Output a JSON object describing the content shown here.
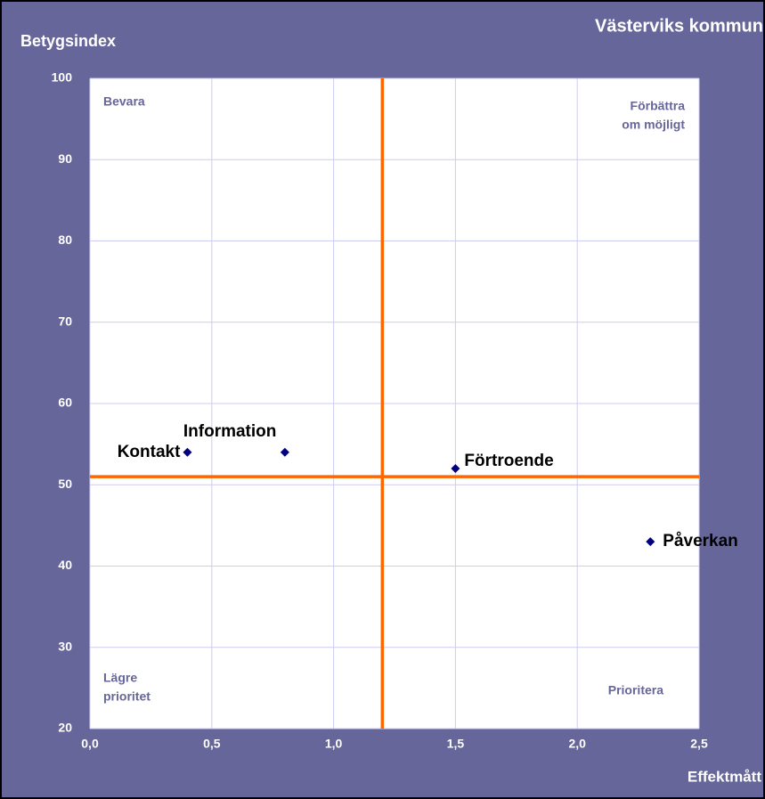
{
  "chart_data": {
    "type": "scatter",
    "title": "Västerviks kommun",
    "xlabel": "Effektmått",
    "ylabel": "Betygsindex",
    "labels": [
      "Kontakt",
      "Information",
      "Förtroende",
      "Påverkan"
    ],
    "x": [
      0.4,
      0.8,
      1.5,
      2.3
    ],
    "values": [
      54,
      54,
      52,
      43
    ],
    "color": "#000080",
    "xlim": [
      0,
      2.5
    ],
    "ylim": [
      20,
      100
    ],
    "xticks": [
      {
        "value": 0,
        "label": "0,0"
      },
      {
        "value": 0.5,
        "label": "0,5"
      },
      {
        "value": 1,
        "label": "1,0"
      },
      {
        "value": 1.5,
        "label": "1,5"
      },
      {
        "value": 2,
        "label": "2,0"
      },
      {
        "value": 2.5,
        "label": "2,5"
      }
    ],
    "yticks": [
      20,
      30,
      40,
      50,
      60,
      70,
      80,
      90,
      100
    ],
    "grid": true,
    "reference_lines": {
      "x": 1.2,
      "y": 51,
      "color": "#ff6600"
    },
    "quadrant_labels": [
      {
        "lines": [
          "Bevara"
        ]
      },
      {
        "lines": [
          "Förbättra",
          "om möjligt"
        ]
      },
      {
        "lines": [
          "Lägre",
          "prioritet"
        ]
      },
      {
        "lines": [
          "Prioritera"
        ]
      }
    ]
  }
}
